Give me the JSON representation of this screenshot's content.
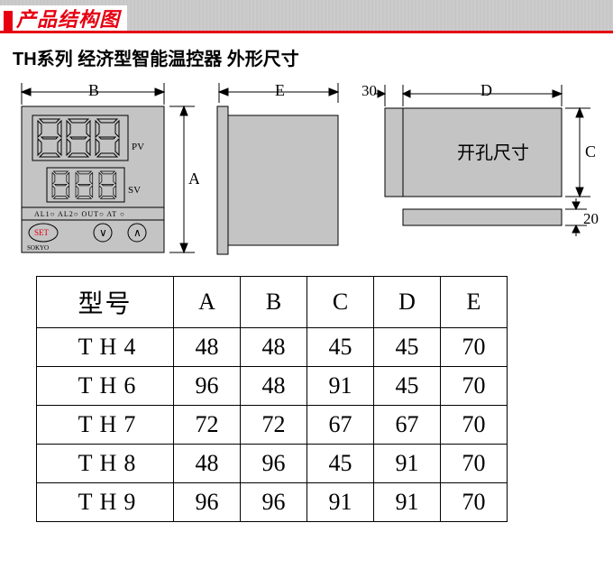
{
  "header": {
    "title": "产品结构图"
  },
  "subtitle": "TH系列 经济型智能温控器 外形尺寸",
  "front_panel": {
    "dim_B_label": "B",
    "dim_A_label": "A",
    "pv_label": "PV",
    "sv_label": "SV",
    "indicators": "AL1○  AL2○ OUT○  AT ○",
    "set_button": "SET",
    "down_button": "V",
    "up_button": "∧",
    "brand": "SOKYO",
    "face_color": "#c4c4c4",
    "stroke_color": "#000000"
  },
  "side_panel": {
    "dim_E_label": "E",
    "face_color": "#c4c4c4",
    "stroke_color": "#000000"
  },
  "cutout": {
    "dim_D_label": "D",
    "dim_C_label": "C",
    "depth_30": "30",
    "bottom_20": "20",
    "cutout_text": "开孔尺寸",
    "face_color": "#c4c4c4",
    "stroke_color": "#000000"
  },
  "table": {
    "header_model": "型号",
    "columns": [
      "A",
      "B",
      "C",
      "D",
      "E"
    ],
    "rows": [
      {
        "model": "TH4",
        "vals": [
          "48",
          "48",
          "45",
          "45",
          "70"
        ]
      },
      {
        "model": "TH6",
        "vals": [
          "96",
          "48",
          "91",
          "45",
          "70"
        ]
      },
      {
        "model": "TH7",
        "vals": [
          "72",
          "72",
          "67",
          "67",
          "70"
        ]
      },
      {
        "model": "TH8",
        "vals": [
          "48",
          "96",
          "45",
          "91",
          "70"
        ]
      },
      {
        "model": "TH9",
        "vals": [
          "96",
          "96",
          "91",
          "91",
          "70"
        ]
      }
    ],
    "border_color": "#000000",
    "font_size_pt": 20
  },
  "colors": {
    "accent_red": "#e60012",
    "panel_gray": "#c4c4c4",
    "stroke": "#000000",
    "background": "#ffffff"
  }
}
